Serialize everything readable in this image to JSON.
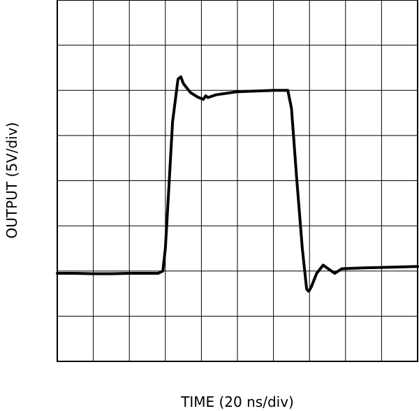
{
  "chart_data": {
    "type": "line",
    "title": "",
    "xlabel": "TIME (20 ns/div)",
    "ylabel": "OUTPUT (5V/div)",
    "x_divisions": 10,
    "y_divisions": 8,
    "grid": true,
    "xlim": [
      0,
      10
    ],
    "ylim": [
      0,
      8
    ],
    "series": [
      {
        "values": [
          [
            0.0,
            1.95
          ],
          [
            0.5,
            1.95
          ],
          [
            1.0,
            1.94
          ],
          [
            1.5,
            1.94
          ],
          [
            2.0,
            1.95
          ],
          [
            2.8,
            1.95
          ],
          [
            2.93,
            2.0
          ],
          [
            3.0,
            2.5
          ],
          [
            3.1,
            3.9
          ],
          [
            3.2,
            5.3
          ],
          [
            3.35,
            6.25
          ],
          [
            3.43,
            6.3
          ],
          [
            3.5,
            6.15
          ],
          [
            3.7,
            5.95
          ],
          [
            3.9,
            5.85
          ],
          [
            4.05,
            5.8
          ],
          [
            4.12,
            5.88
          ],
          [
            4.18,
            5.84
          ],
          [
            4.4,
            5.9
          ],
          [
            5.0,
            5.97
          ],
          [
            6.0,
            6.0
          ],
          [
            6.4,
            6.0
          ],
          [
            6.5,
            5.6
          ],
          [
            6.65,
            4.0
          ],
          [
            6.8,
            2.5
          ],
          [
            6.92,
            1.6
          ],
          [
            6.98,
            1.55
          ],
          [
            7.05,
            1.65
          ],
          [
            7.2,
            1.95
          ],
          [
            7.38,
            2.13
          ],
          [
            7.52,
            2.05
          ],
          [
            7.7,
            1.95
          ],
          [
            7.9,
            2.05
          ],
          [
            8.5,
            2.07
          ],
          [
            9.0,
            2.08
          ],
          [
            10.0,
            2.1
          ]
        ]
      }
    ]
  }
}
